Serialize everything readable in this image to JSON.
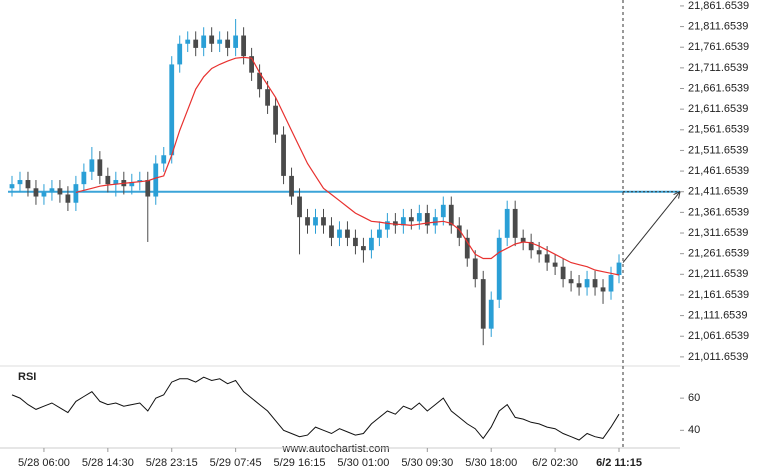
{
  "chart_data": {
    "type": "candlestick",
    "categories": [
      null,
      null,
      null,
      null,
      "5/28 06:00",
      null,
      null,
      null,
      null,
      null,
      null,
      null,
      "5/28 14:30",
      null,
      null,
      null,
      null,
      null,
      null,
      null,
      "5/28 23:15",
      null,
      null,
      null,
      null,
      null,
      null,
      null,
      "5/29 07:45",
      null,
      null,
      null,
      null,
      null,
      null,
      null,
      "5/29 16:15",
      null,
      null,
      null,
      null,
      null,
      null,
      null,
      "5/30 01:00",
      null,
      null,
      null,
      null,
      null,
      null,
      null,
      "5/30 09:30",
      null,
      null,
      null,
      null,
      null,
      null,
      null,
      "5/30 18:00",
      null,
      null,
      null,
      null,
      null,
      null,
      null,
      "6/2 02:30",
      null,
      null,
      null,
      null,
      null,
      null,
      null,
      "6/2 11:15"
    ],
    "open": [
      21420,
      21430,
      21440,
      21420,
      21400,
      21410,
      21420,
      21405,
      21385,
      21430,
      21460,
      21490,
      21450,
      21430,
      21440,
      21425,
      21435,
      21440,
      21400,
      21480,
      21500,
      21720,
      21770,
      21780,
      21760,
      21790,
      21770,
      21780,
      21760,
      21790,
      21740,
      21700,
      21660,
      21620,
      21550,
      21450,
      21400,
      21350,
      21330,
      21350,
      21330,
      21300,
      21320,
      21300,
      21280,
      21270,
      21300,
      21320,
      21340,
      21330,
      21350,
      21340,
      21360,
      21330,
      21350,
      21380,
      21330,
      21300,
      21250,
      21200,
      21080,
      21150,
      21300,
      21370,
      21300,
      21290,
      21270,
      21260,
      21240,
      21230,
      21200,
      21190,
      21180,
      21200,
      21180,
      21170,
      21210
    ],
    "high": [
      21450,
      21460,
      21460,
      21440,
      21430,
      21440,
      21440,
      21425,
      21450,
      21480,
      21520,
      21510,
      21470,
      21460,
      21460,
      21455,
      21460,
      21460,
      21500,
      21520,
      21740,
      21790,
      21800,
      21800,
      21810,
      21810,
      21800,
      21800,
      21830,
      21810,
      21760,
      21720,
      21680,
      21640,
      21570,
      21470,
      21420,
      21370,
      21370,
      21370,
      21350,
      21340,
      21340,
      21320,
      21300,
      21320,
      21340,
      21360,
      21360,
      21370,
      21370,
      21380,
      21380,
      21370,
      21400,
      21400,
      21350,
      21320,
      21270,
      21220,
      21170,
      21320,
      21390,
      21390,
      21320,
      21310,
      21290,
      21280,
      21260,
      21250,
      21220,
      21210,
      21220,
      21220,
      21200,
      21230,
      21260
    ],
    "low": [
      21400,
      21410,
      21400,
      21380,
      21380,
      21390,
      21385,
      21365,
      21365,
      21410,
      21440,
      21430,
      21410,
      21400,
      21405,
      21405,
      21415,
      21290,
      21380,
      21460,
      21480,
      21700,
      21750,
      21740,
      21740,
      21750,
      21750,
      21740,
      21740,
      21720,
      21680,
      21640,
      21600,
      21530,
      21430,
      21380,
      21260,
      21310,
      21310,
      21310,
      21280,
      21280,
      21280,
      21260,
      21240,
      21250,
      21280,
      21300,
      21310,
      21310,
      21320,
      21320,
      21310,
      21310,
      21330,
      21310,
      21280,
      21230,
      21180,
      21040,
      21060,
      21130,
      21280,
      21280,
      21270,
      21250,
      21240,
      21220,
      21210,
      21180,
      21170,
      21160,
      21160,
      21160,
      21140,
      21150,
      21190
    ],
    "close": [
      21430,
      21440,
      21420,
      21400,
      21410,
      21420,
      21405,
      21385,
      21430,
      21460,
      21490,
      21450,
      21430,
      21440,
      21425,
      21435,
      21440,
      21400,
      21480,
      21500,
      21720,
      21770,
      21780,
      21760,
      21790,
      21770,
      21780,
      21760,
      21790,
      21740,
      21700,
      21660,
      21620,
      21550,
      21450,
      21400,
      21350,
      21330,
      21350,
      21330,
      21300,
      21320,
      21300,
      21280,
      21270,
      21300,
      21320,
      21340,
      21330,
      21350,
      21340,
      21360,
      21330,
      21350,
      21380,
      21330,
      21300,
      21250,
      21200,
      21080,
      21150,
      21300,
      21370,
      21300,
      21290,
      21270,
      21260,
      21240,
      21230,
      21200,
      21190,
      21180,
      21200,
      21180,
      21170,
      21210,
      21240
    ],
    "up_color": "#2a9fd6",
    "down_color": "#4a4a4a",
    "moving_average": {
      "color": "#e8312f",
      "values": [
        null,
        null,
        null,
        null,
        null,
        null,
        null,
        null,
        21410,
        21415,
        21420,
        21425,
        21428,
        21430,
        21432,
        21434,
        21436,
        21438,
        21445,
        21450,
        21500,
        21560,
        21610,
        21660,
        21690,
        21710,
        21720,
        21728,
        21735,
        21737,
        21735,
        21700,
        21670,
        21640,
        21600,
        21560,
        21520,
        21480,
        21450,
        21420,
        21405,
        21390,
        21375,
        21360,
        21350,
        21340,
        21338,
        21335,
        21333,
        21332,
        21330,
        21333,
        21336,
        21338,
        21340,
        21335,
        21320,
        21290,
        21260,
        21250,
        21250,
        21265,
        21275,
        21285,
        21290,
        21288,
        21280,
        21270,
        21260,
        21250,
        21240,
        21235,
        21230,
        21222,
        21218,
        21214,
        21210
      ]
    },
    "level": 21411.6539,
    "level_color": "#3ba4d8",
    "ylim": [
      20992,
      21876
    ],
    "yticks": [
      {
        "value": 21011.6539,
        "label": "21,011.6539"
      },
      {
        "value": 21061.6539,
        "label": "21,061.6539"
      },
      {
        "value": 21111.6539,
        "label": "21,111.6539"
      },
      {
        "value": 21161.6539,
        "label": "21,161.6539"
      },
      {
        "value": 21211.6539,
        "label": "21,211.6539"
      },
      {
        "value": 21261.6539,
        "label": "21,261.6539"
      },
      {
        "value": 21311.6539,
        "label": "21,311.6539"
      },
      {
        "value": 21361.6539,
        "label": "21,361.6539"
      },
      {
        "value": 21411.6539,
        "label": "21,411.6539"
      },
      {
        "value": 21461.6539,
        "label": "21,461.6539"
      },
      {
        "value": 21511.6539,
        "label": "21,511.6539"
      },
      {
        "value": 21561.6539,
        "label": "21,561.6539"
      },
      {
        "value": 21611.6539,
        "label": "21,611.6539"
      },
      {
        "value": 21661.6539,
        "label": "21,661.6539"
      },
      {
        "value": 21711.6539,
        "label": "21,711.6539"
      },
      {
        "value": 21761.6539,
        "label": "21,761.6539"
      },
      {
        "value": 21811.6539,
        "label": "21,811.6539"
      },
      {
        "value": 21861.6539,
        "label": "21,861.6539"
      }
    ],
    "rsi": {
      "title": "RSI",
      "ylim": [
        29,
        77.5
      ],
      "yticks": [
        60,
        40
      ],
      "values": [
        62,
        60,
        56,
        53,
        55,
        57,
        54,
        51,
        58,
        61,
        64,
        58,
        56,
        57,
        55,
        56,
        57,
        52,
        60,
        62,
        70,
        72,
        72,
        70,
        73,
        71,
        72,
        69,
        71,
        64,
        60,
        56,
        52,
        46,
        40,
        38,
        36,
        37,
        42,
        40,
        38,
        41,
        39,
        37,
        38,
        44,
        48,
        52,
        50,
        55,
        53,
        57,
        52,
        56,
        60,
        52,
        48,
        44,
        41,
        35,
        42,
        52,
        56,
        48,
        47,
        45,
        44,
        42,
        41,
        38,
        36,
        34,
        38,
        36,
        35,
        42,
        50
      ]
    },
    "footer": "www.autochartist.com"
  }
}
